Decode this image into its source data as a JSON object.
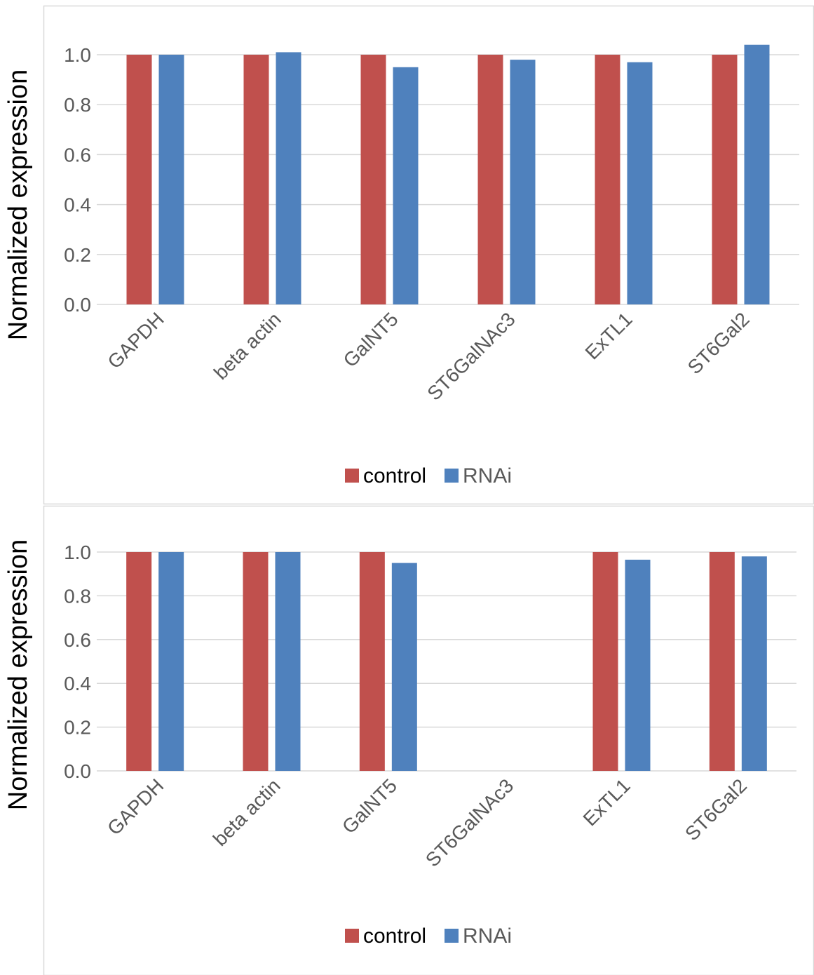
{
  "chart_data": [
    {
      "type": "bar",
      "categories": [
        "GAPDH",
        "beta actin",
        "GalNT5",
        "ST6GalNAc3",
        "ExTL1",
        "ST6Gal2"
      ],
      "series": [
        {
          "name": "control",
          "values": [
            1.0,
            1.0,
            1.0,
            1.0,
            1.0,
            1.0
          ],
          "color": "#C0504D"
        },
        {
          "name": "RNAi",
          "values": [
            1.0,
            1.01,
            0.95,
            0.98,
            0.97,
            1.04
          ],
          "color": "#4F81BD"
        }
      ],
      "xlabel": "",
      "ylabel": "Normalized expression",
      "ylim": [
        0,
        1.0
      ],
      "yticks": [
        "0.0",
        "0.2",
        "0.4",
        "0.6",
        "0.8",
        "1.0"
      ],
      "grid": true,
      "legend": "bottom"
    },
    {
      "type": "bar",
      "categories": [
        "GAPDH",
        "beta actin",
        "GalNT5",
        "ST6GalNAc3",
        "ExTL1",
        "ST6Gal2"
      ],
      "series": [
        {
          "name": "control",
          "values": [
            1.0,
            1.0,
            1.0,
            null,
            1.0,
            1.0
          ],
          "color": "#C0504D"
        },
        {
          "name": "RNAi",
          "values": [
            1.0,
            1.0,
            0.95,
            null,
            0.965,
            0.98
          ],
          "color": "#4F81BD"
        }
      ],
      "xlabel": "",
      "ylabel": "Normalized expression",
      "ylim": [
        0,
        1.0
      ],
      "yticks": [
        "0.0",
        "0.2",
        "0.4",
        "0.6",
        "0.8",
        "1.0"
      ],
      "grid": true,
      "legend": "bottom"
    }
  ]
}
